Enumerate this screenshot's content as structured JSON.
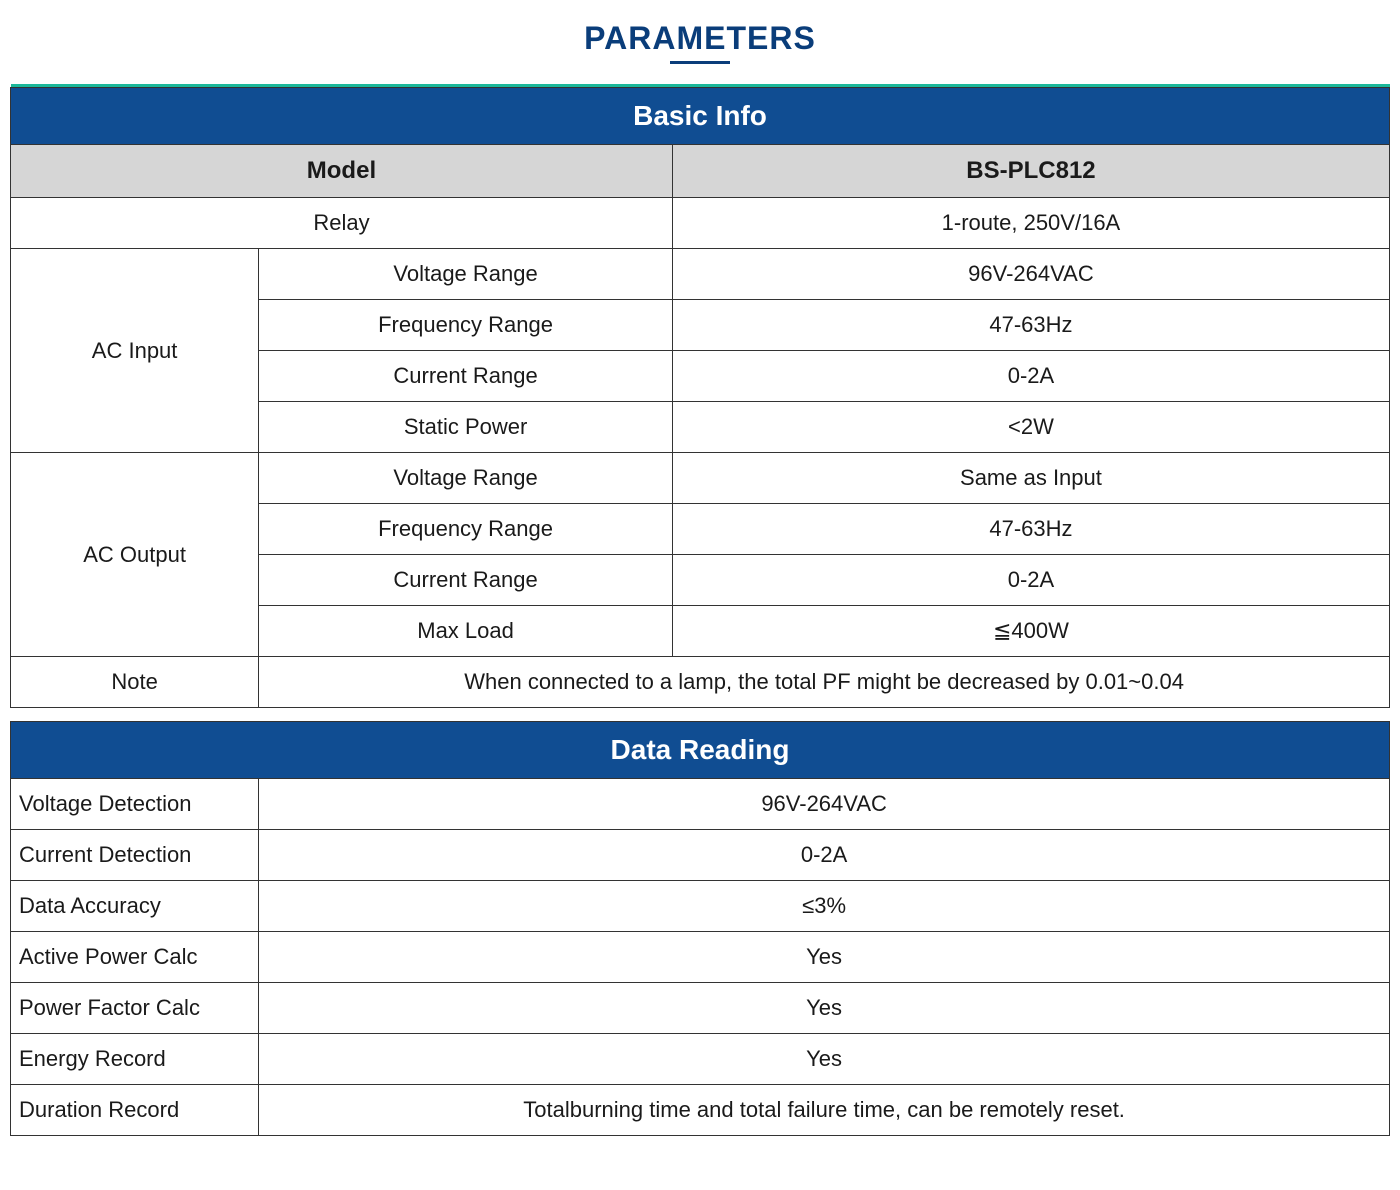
{
  "page": {
    "title": "PARAMETERS",
    "title_color": "#0a3d7a",
    "title_fontsize": 32,
    "underline_color": "#0a3d7a"
  },
  "colors": {
    "section_header_bg": "#104d92",
    "section_header_text": "#ffffff",
    "subheader_bg": "#d6d6d6",
    "border": "#333333",
    "accent_line": "#1bb89a",
    "body_text": "#1a1a1a",
    "background": "#ffffff"
  },
  "typography": {
    "body_fontsize": 22,
    "section_header_fontsize": 28,
    "subheader_fontsize": 24,
    "font_family": "Arial"
  },
  "basic_info": {
    "section_title": "Basic Info",
    "header_left": "Model",
    "header_right": "BS-PLC812",
    "relay": {
      "label": "Relay",
      "value": "1-route, 250V/16A"
    },
    "ac_input": {
      "group_label": "AC Input",
      "rows": [
        {
          "param": "Voltage Range",
          "value": "96V-264VAC"
        },
        {
          "param": "Frequency Range",
          "value": "47-63Hz"
        },
        {
          "param": "Current Range",
          "value": "0-2A"
        },
        {
          "param": "Static Power",
          "value": "<2W"
        }
      ]
    },
    "ac_output": {
      "group_label": "AC Output",
      "rows": [
        {
          "param": "Voltage Range",
          "value": "Same as Input"
        },
        {
          "param": "Frequency Range",
          "value": "47-63Hz"
        },
        {
          "param": "Current Range",
          "value": "0-2A"
        },
        {
          "param": "Max Load",
          "value": "≦400W"
        }
      ]
    },
    "note": {
      "label": "Note",
      "value": "When connected to a lamp, the total PF might be decreased by 0.01~0.04"
    }
  },
  "data_reading": {
    "section_title": "Data Reading",
    "rows": [
      {
        "label": "Voltage Detection",
        "value": "96V-264VAC"
      },
      {
        "label": "Current Detection",
        "value": "0-2A"
      },
      {
        "label": "Data Accuracy",
        "value": "≤3%"
      },
      {
        "label": "Active Power Calc",
        "value": "Yes"
      },
      {
        "label": "Power Factor Calc",
        "value": "Yes"
      },
      {
        "label": "Energy Record",
        "value": "Yes"
      },
      {
        "label": "Duration Record",
        "value": "Totalburning time and total failure time, can be remotely reset."
      }
    ]
  }
}
